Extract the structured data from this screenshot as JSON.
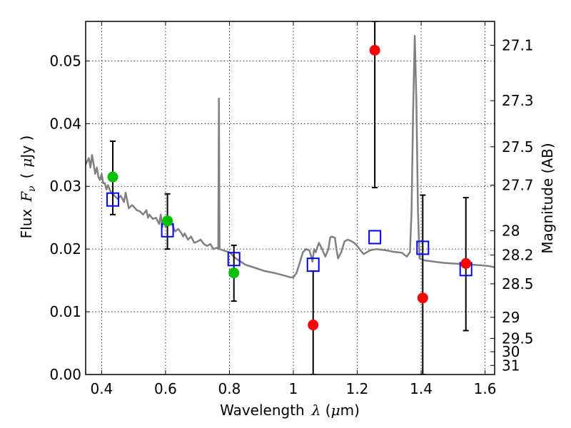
{
  "chart_data": {
    "type": "scatter",
    "xlabel": {
      "text": "Wavelength",
      "symbol": "λ",
      "unit_open": " (",
      "unit_mu": "μ",
      "unit_close": "m)"
    },
    "ylabel": {
      "text": "Flux",
      "symbol": "F",
      "subscript": "ν",
      "unit_open": "(",
      "unit_mu": "μ",
      "unit_close": "Jy )"
    },
    "y2label": "Magnitude (AB)",
    "xlim": [
      0.35,
      1.63
    ],
    "ylim": [
      0.0,
      0.0563
    ],
    "grid": true,
    "x_ticks": [
      {
        "value": 0.4,
        "label": "0.4"
      },
      {
        "value": 0.6,
        "label": "0.6"
      },
      {
        "value": 0.8,
        "label": "0.8"
      },
      {
        "value": 1.0,
        "label": "1"
      },
      {
        "value": 1.2,
        "label": "1.2"
      },
      {
        "value": 1.4,
        "label": "1.4"
      },
      {
        "value": 1.6,
        "label": "1.6"
      }
    ],
    "y_ticks": [
      {
        "value": 0.0,
        "label": "0.00"
      },
      {
        "value": 0.01,
        "label": "0.01"
      },
      {
        "value": 0.02,
        "label": "0.02"
      },
      {
        "value": 0.03,
        "label": "0.03"
      },
      {
        "value": 0.04,
        "label": "0.04"
      },
      {
        "value": 0.05,
        "label": "0.05"
      }
    ],
    "mag_ticks": [
      {
        "value": 27.1,
        "label": "27.1"
      },
      {
        "value": 27.3,
        "label": "27.3"
      },
      {
        "value": 27.5,
        "label": "27.5"
      },
      {
        "value": 27.7,
        "label": "27.7"
      },
      {
        "value": 28.0,
        "label": "28"
      },
      {
        "value": 28.2,
        "label": "28.2"
      },
      {
        "value": 28.5,
        "label": "28.5"
      },
      {
        "value": 29.0,
        "label": "29"
      },
      {
        "value": 29.5,
        "label": "29.5"
      },
      {
        "value": 30.0,
        "label": "30"
      },
      {
        "value": 31.0,
        "label": "31"
      }
    ],
    "series": [
      {
        "kind": "line",
        "color": "#808080",
        "points": [
          [
            0.35,
            0.0335
          ],
          [
            0.355,
            0.034
          ],
          [
            0.36,
            0.0345
          ],
          [
            0.365,
            0.033
          ],
          [
            0.37,
            0.035
          ],
          [
            0.375,
            0.0335
          ],
          [
            0.38,
            0.032
          ],
          [
            0.385,
            0.033
          ],
          [
            0.39,
            0.0315
          ],
          [
            0.395,
            0.031
          ],
          [
            0.4,
            0.032
          ],
          [
            0.405,
            0.0305
          ],
          [
            0.41,
            0.0305
          ],
          [
            0.415,
            0.0295
          ],
          [
            0.42,
            0.0302
          ],
          [
            0.425,
            0.0295
          ],
          [
            0.43,
            0.029
          ],
          [
            0.44,
            0.0285
          ],
          [
            0.45,
            0.028
          ],
          [
            0.46,
            0.0285
          ],
          [
            0.47,
            0.0275
          ],
          [
            0.475,
            0.029
          ],
          [
            0.48,
            0.0278
          ],
          [
            0.485,
            0.0265
          ],
          [
            0.495,
            0.027
          ],
          [
            0.5,
            0.0268
          ],
          [
            0.51,
            0.0262
          ],
          [
            0.52,
            0.026
          ],
          [
            0.53,
            0.0255
          ],
          [
            0.54,
            0.0262
          ],
          [
            0.545,
            0.025
          ],
          [
            0.55,
            0.0255
          ],
          [
            0.56,
            0.0248
          ],
          [
            0.57,
            0.025
          ],
          [
            0.58,
            0.024
          ],
          [
            0.585,
            0.0255
          ],
          [
            0.59,
            0.0235
          ],
          [
            0.595,
            0.025
          ],
          [
            0.6,
            0.0235
          ],
          [
            0.61,
            0.0238
          ],
          [
            0.62,
            0.024
          ],
          [
            0.63,
            0.0228
          ],
          [
            0.64,
            0.0232
          ],
          [
            0.65,
            0.0225
          ],
          [
            0.655,
            0.022
          ],
          [
            0.66,
            0.0225
          ],
          [
            0.67,
            0.0215
          ],
          [
            0.68,
            0.022
          ],
          [
            0.69,
            0.021
          ],
          [
            0.7,
            0.0212
          ],
          [
            0.71,
            0.0215
          ],
          [
            0.72,
            0.0208
          ],
          [
            0.73,
            0.0205
          ],
          [
            0.74,
            0.0208
          ],
          [
            0.75,
            0.02
          ],
          [
            0.76,
            0.0202
          ],
          [
            0.765,
            0.02
          ],
          [
            0.767,
            0.044
          ],
          [
            0.769,
            0.02
          ],
          [
            0.78,
            0.0198
          ],
          [
            0.8,
            0.0195
          ],
          [
            0.82,
            0.0185
          ],
          [
            0.85,
            0.0175
          ],
          [
            0.88,
            0.017
          ],
          [
            0.91,
            0.0165
          ],
          [
            0.94,
            0.0162
          ],
          [
            0.97,
            0.0158
          ],
          [
            0.99,
            0.0155
          ],
          [
            1.0,
            0.0155
          ],
          [
            1.01,
            0.0162
          ],
          [
            1.02,
            0.0178
          ],
          [
            1.03,
            0.0195
          ],
          [
            1.04,
            0.02
          ],
          [
            1.05,
            0.0198
          ],
          [
            1.055,
            0.019
          ],
          [
            1.06,
            0.018
          ],
          [
            1.065,
            0.02
          ],
          [
            1.07,
            0.0195
          ],
          [
            1.08,
            0.021
          ],
          [
            1.09,
            0.02
          ],
          [
            1.1,
            0.0188
          ],
          [
            1.11,
            0.02
          ],
          [
            1.115,
            0.0218
          ],
          [
            1.12,
            0.022
          ],
          [
            1.13,
            0.0218
          ],
          [
            1.135,
            0.02
          ],
          [
            1.14,
            0.0185
          ],
          [
            1.15,
            0.0195
          ],
          [
            1.16,
            0.0212
          ],
          [
            1.17,
            0.0215
          ],
          [
            1.18,
            0.0213
          ],
          [
            1.19,
            0.021
          ],
          [
            1.2,
            0.0205
          ],
          [
            1.21,
            0.0198
          ],
          [
            1.22,
            0.0192
          ],
          [
            1.24,
            0.0198
          ],
          [
            1.26,
            0.02
          ],
          [
            1.29,
            0.0198
          ],
          [
            1.31,
            0.0196
          ],
          [
            1.34,
            0.0194
          ],
          [
            1.355,
            0.0188
          ],
          [
            1.365,
            0.0195
          ],
          [
            1.37,
            0.026
          ],
          [
            1.375,
            0.042
          ],
          [
            1.38,
            0.054
          ],
          [
            1.385,
            0.044
          ],
          [
            1.39,
            0.026
          ],
          [
            1.395,
            0.0185
          ],
          [
            1.41,
            0.0182
          ],
          [
            1.44,
            0.018
          ],
          [
            1.47,
            0.0178
          ],
          [
            1.5,
            0.0177
          ],
          [
            1.53,
            0.0176
          ],
          [
            1.56,
            0.0175
          ],
          [
            1.59,
            0.0174
          ],
          [
            1.61,
            0.0173
          ],
          [
            1.63,
            0.0171
          ]
        ]
      },
      {
        "kind": "errorbar",
        "color": "#000000",
        "bars": [
          {
            "x": 0.435,
            "low": 0.0255,
            "high": 0.0372
          },
          {
            "x": 0.606,
            "low": 0.02,
            "high": 0.0288
          },
          {
            "x": 0.814,
            "low": 0.0117,
            "high": 0.0206
          },
          {
            "x": 1.062,
            "low": 0.0,
            "high": 0.0165
          },
          {
            "x": 1.255,
            "low": 0.0298,
            "high": 0.0563
          },
          {
            "x": 1.405,
            "low": 0.0,
            "high": 0.0286
          },
          {
            "x": 1.54,
            "low": 0.007,
            "high": 0.0282
          }
        ]
      },
      {
        "kind": "scatter",
        "marker": "circle",
        "color": "#00c000",
        "points": [
          [
            0.435,
            0.0315
          ],
          [
            0.606,
            0.0245
          ],
          [
            0.814,
            0.0162
          ]
        ]
      },
      {
        "kind": "scatter",
        "marker": "circle",
        "color": "#ff0000",
        "points": [
          [
            1.062,
            0.0079
          ],
          [
            1.255,
            0.0517
          ],
          [
            1.405,
            0.0122
          ],
          [
            1.54,
            0.0177
          ]
        ]
      },
      {
        "kind": "scatter",
        "marker": "square-open",
        "color": "#0000ff",
        "points": [
          [
            0.435,
            0.0279
          ],
          [
            0.606,
            0.023
          ],
          [
            0.814,
            0.0184
          ],
          [
            1.062,
            0.0175
          ],
          [
            1.255,
            0.0219
          ],
          [
            1.405,
            0.0202
          ],
          [
            1.54,
            0.0168
          ]
        ]
      }
    ]
  }
}
